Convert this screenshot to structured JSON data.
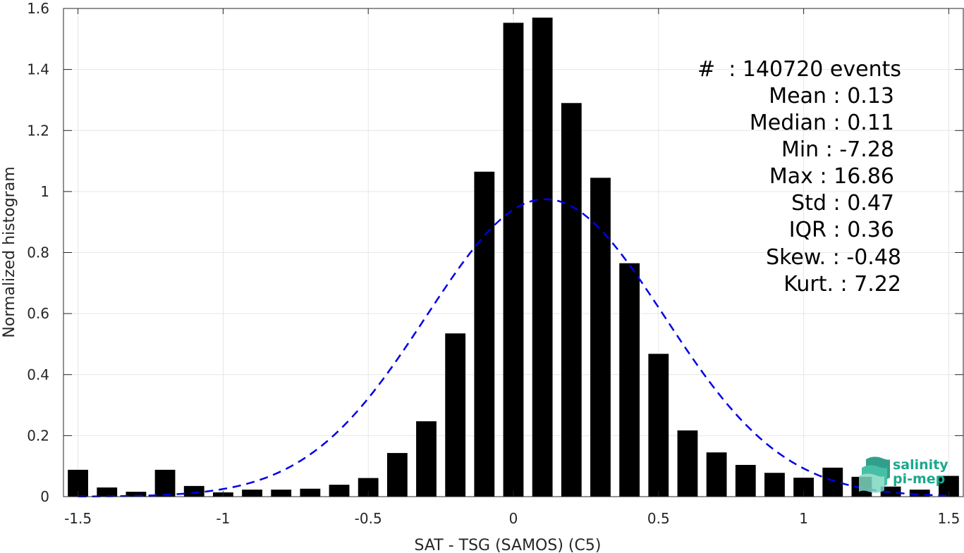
{
  "chart_data": {
    "type": "bar",
    "title": "",
    "xlabel": "SAT - TSG (SAMOS) (C5)",
    "ylabel": "Normalized histogram",
    "xlim": [
      -1.55,
      1.55
    ],
    "ylim": [
      0,
      1.6
    ],
    "xticks": [
      -1.5,
      -1,
      -0.5,
      0,
      0.5,
      1,
      1.5
    ],
    "xtick_labels": [
      "-1.5",
      "-1",
      "-0.5",
      "0",
      "0.5",
      "1",
      "1.5"
    ],
    "yticks": [
      0,
      0.2,
      0.4,
      0.6,
      0.8,
      1,
      1.2,
      1.4,
      1.6
    ],
    "ytick_labels": [
      "0",
      "0.2",
      "0.4",
      "0.6",
      "0.8",
      "1",
      "1.2",
      "1.4",
      "1.6"
    ],
    "grid": true,
    "bar_color": "#000000",
    "bar_width": 0.07,
    "bins": [
      {
        "x": -1.5,
        "value": 0.088
      },
      {
        "x": -1.4,
        "value": 0.03
      },
      {
        "x": -1.3,
        "value": 0.016
      },
      {
        "x": -1.2,
        "value": 0.088
      },
      {
        "x": -1.1,
        "value": 0.035
      },
      {
        "x": -1.0,
        "value": 0.014
      },
      {
        "x": -0.9,
        "value": 0.023
      },
      {
        "x": -0.8,
        "value": 0.023
      },
      {
        "x": -0.7,
        "value": 0.026
      },
      {
        "x": -0.6,
        "value": 0.039
      },
      {
        "x": -0.5,
        "value": 0.061
      },
      {
        "x": -0.4,
        "value": 0.143
      },
      {
        "x": -0.3,
        "value": 0.247
      },
      {
        "x": -0.2,
        "value": 0.535
      },
      {
        "x": -0.1,
        "value": 1.065
      },
      {
        "x": 0.0,
        "value": 1.553
      },
      {
        "x": 0.1,
        "value": 1.57
      },
      {
        "x": 0.2,
        "value": 1.29
      },
      {
        "x": 0.3,
        "value": 1.045
      },
      {
        "x": 0.4,
        "value": 0.765
      },
      {
        "x": 0.5,
        "value": 0.468
      },
      {
        "x": 0.6,
        "value": 0.217
      },
      {
        "x": 0.7,
        "value": 0.145
      },
      {
        "x": 0.8,
        "value": 0.104
      },
      {
        "x": 0.9,
        "value": 0.078
      },
      {
        "x": 1.0,
        "value": 0.062
      },
      {
        "x": 1.1,
        "value": 0.095
      },
      {
        "x": 1.2,
        "value": 0.065
      },
      {
        "x": 1.3,
        "value": 0.033
      },
      {
        "x": 1.4,
        "value": 0.023
      },
      {
        "x": 1.5,
        "value": 0.068
      }
    ],
    "fit_curve": {
      "kind": "gaussian",
      "mean": 0.11,
      "std": 0.41,
      "peak": 0.975,
      "x_range": [
        -1.5,
        1.5
      ],
      "color": "#0000e6",
      "style": "dashed"
    },
    "stats": {
      "events": "#  : 140720 events",
      "mean": "Mean : 0.13",
      "median": "Median : 0.11",
      "min": "Min : -7.28",
      "max": "Max : 16.86",
      "std": "Std : 0.47",
      "iqr": "IQR : 0.36",
      "skew": "Skew. : -0.48",
      "kurt": "Kurt. : 7.22"
    }
  },
  "logo": {
    "line1": "salinity",
    "line2": "pi-mep",
    "color": "#1aa88e"
  }
}
